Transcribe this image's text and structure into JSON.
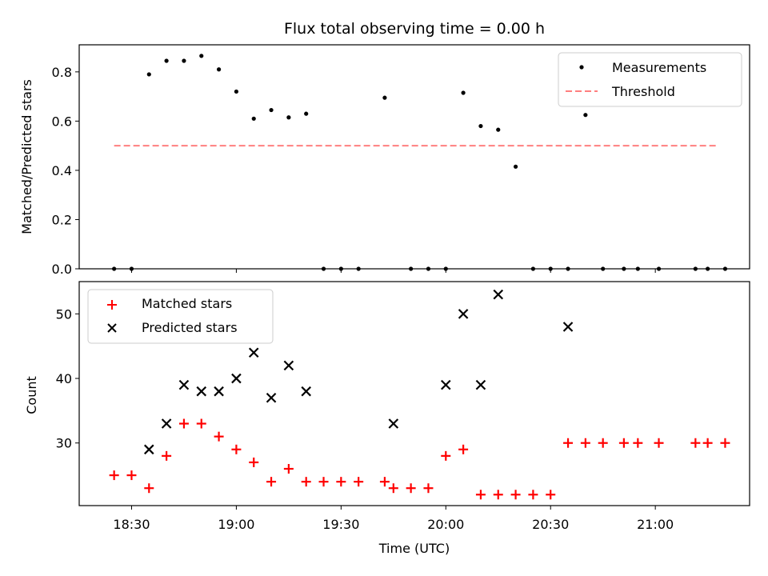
{
  "chart_data": [
    {
      "type": "scatter",
      "title": "Flux total observing time = 0.00 h",
      "ylabel": "Matched/Predicted stars",
      "xlabel": "",
      "xlim_minutes": [
        1095,
        1287
      ],
      "ylim": [
        0,
        0.91
      ],
      "yticks": [
        0.0,
        0.2,
        0.4,
        0.6,
        0.8
      ],
      "ytick_labels": [
        "0.0",
        "0.2",
        "0.4",
        "0.6",
        "0.8"
      ],
      "legend_position": "top-right",
      "series": [
        {
          "name": "Measurements",
          "marker": "dot",
          "color": "#000000",
          "x": [
            1105,
            1110,
            1115,
            1120,
            1125,
            1130,
            1135,
            1140,
            1145,
            1150,
            1155,
            1160,
            1165,
            1170,
            1175,
            1182.5,
            1190,
            1195,
            1200,
            1205,
            1210,
            1215,
            1220,
            1225,
            1230,
            1235,
            1240,
            1245,
            1251,
            1255,
            1261,
            1271.5,
            1275,
            1280
          ],
          "y": [
            0,
            0,
            0.79,
            0.845,
            0.845,
            0.865,
            0.81,
            0.72,
            0.61,
            0.645,
            0.615,
            0.63,
            0,
            0,
            0,
            0.695,
            0,
            0,
            0,
            0.715,
            0.58,
            0.565,
            0.415,
            0,
            0,
            0,
            0.625,
            0,
            0,
            0,
            0,
            0,
            0,
            0
          ]
        },
        {
          "name": "Threshold",
          "style": "dashed-line",
          "color": "#ff7f7f",
          "x": [
            1105,
            1278
          ],
          "y": [
            0.5,
            0.5
          ]
        }
      ]
    },
    {
      "type": "scatter",
      "title": "",
      "ylabel": "Count",
      "xlabel": "Time (UTC)",
      "xlim_minutes": [
        1095,
        1287
      ],
      "ylim": [
        20.3,
        55
      ],
      "yticks": [
        30,
        40,
        50
      ],
      "ytick_labels": [
        "30",
        "40",
        "50"
      ],
      "xticks_minutes": [
        1110,
        1140,
        1170,
        1200,
        1230,
        1260
      ],
      "xtick_labels": [
        "18:30",
        "19:00",
        "19:30",
        "20:00",
        "20:30",
        "21:00"
      ],
      "legend_position": "top-left",
      "series": [
        {
          "name": "Matched stars",
          "marker": "plus",
          "color": "#ff0000",
          "x": [
            1105,
            1110,
            1115,
            1120,
            1125,
            1130,
            1135,
            1140,
            1145,
            1150,
            1155,
            1160,
            1165,
            1170,
            1175,
            1182.5,
            1185,
            1190,
            1195,
            1200,
            1205,
            1210,
            1215,
            1220,
            1225,
            1230,
            1235,
            1240,
            1245,
            1251,
            1255,
            1261,
            1271.5,
            1275,
            1280
          ],
          "y": [
            25,
            25,
            23,
            28,
            33,
            33,
            31,
            29,
            27,
            24,
            26,
            24,
            24,
            24,
            24,
            24,
            23,
            23,
            23,
            28,
            29,
            22,
            22,
            22,
            22,
            22,
            30,
            30,
            30,
            30,
            30,
            30,
            30,
            30,
            30
          ]
        },
        {
          "name": "Predicted stars",
          "marker": "x",
          "color": "#000000",
          "x": [
            1115,
            1120,
            1125,
            1130,
            1135,
            1140,
            1145,
            1150,
            1155,
            1160,
            1185,
            1200,
            1205,
            1210,
            1215,
            1235
          ],
          "y": [
            29,
            33,
            39,
            38,
            38,
            40,
            44,
            37,
            42,
            38,
            33,
            39,
            50,
            39,
            53,
            48
          ]
        }
      ]
    }
  ]
}
